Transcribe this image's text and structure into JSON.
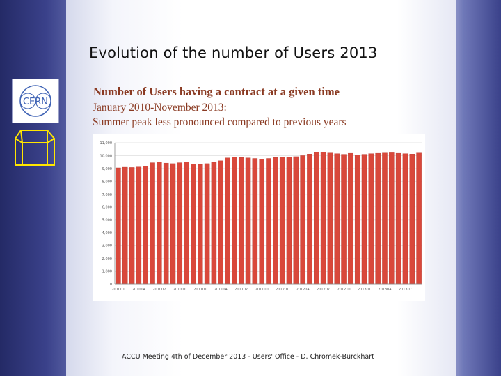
{
  "slide": {
    "title": "Evolution of the number of Users 2013",
    "subtitle": "Number of Users having a contract at a given time",
    "line2": "January 2010-November 2013:",
    "line3": "Summer peak less pronounced compared to previous years",
    "footer": "ACCU Meeting 4th of December 2013 - Users' Office - D. Chromek-Burckhart",
    "logo_text": "CERN"
  },
  "colors": {
    "bar": "#d9483b",
    "bar_edge": "#b7352a",
    "text_accent": "#8a3a22"
  },
  "chart_data": {
    "type": "bar",
    "title": "",
    "xlabel": "",
    "ylabel": "",
    "ylim": [
      0,
      11000
    ],
    "yticks": [
      0,
      1000,
      2000,
      3000,
      4000,
      5000,
      6000,
      7000,
      8000,
      9000,
      10000,
      11000
    ],
    "ytick_labels": [
      "0",
      "1,000",
      "2,000",
      "3,000",
      "4,000",
      "5,000",
      "6,000",
      "7,000",
      "8,000",
      "9,000",
      "10,000",
      "11,000"
    ],
    "xtick_labels": [
      "201001",
      "201004",
      "201007",
      "201010",
      "201101",
      "201104",
      "201107",
      "201110",
      "201201",
      "201204",
      "201207",
      "201210",
      "201301",
      "201304",
      "201307"
    ],
    "values": [
      9050,
      9100,
      9080,
      9120,
      9200,
      9450,
      9500,
      9420,
      9380,
      9450,
      9520,
      9350,
      9320,
      9380,
      9480,
      9600,
      9820,
      9880,
      9850,
      9820,
      9780,
      9720,
      9780,
      9850,
      9900,
      9880,
      9920,
      10000,
      10120,
      10250,
      10280,
      10200,
      10150,
      10100,
      10180,
      10050,
      10100,
      10150,
      10180,
      10200,
      10220,
      10180,
      10150,
      10120,
      10200
    ]
  }
}
